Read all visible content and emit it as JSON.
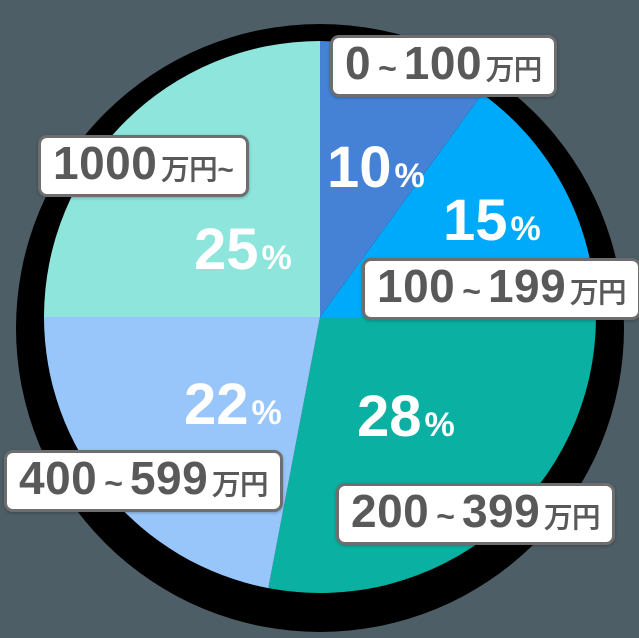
{
  "background_color": "#4E5E66",
  "chart_data": {
    "type": "pie",
    "start_angle_deg": -90,
    "direction": "clockwise",
    "legend_position": "callout-boxes",
    "percent_symbol": "%",
    "shadow_color": "#000000",
    "box_text_color": "#595959",
    "box_border_color": "#6e6e6e",
    "slices": [
      {
        "name": "0-100man-yen",
        "range_start": "0",
        "tilde": "~",
        "range_end": "100",
        "unit": "万円",
        "percent": 10,
        "color": "#4582D6"
      },
      {
        "name": "100-199man-yen",
        "range_start": "100",
        "tilde": "~",
        "range_end": "199",
        "unit": "万円",
        "percent": 15,
        "color": "#00AAFA"
      },
      {
        "name": "200-399man-yen",
        "range_start": "200",
        "tilde": "~",
        "range_end": "399",
        "unit": "万円",
        "percent": 28,
        "color": "#0AB1A2"
      },
      {
        "name": "400-599man-yen",
        "range_start": "400",
        "tilde": "~",
        "range_end": "599",
        "unit": "万円",
        "percent": 22,
        "color": "#99C6FA"
      },
      {
        "name": "1000man-yen-over",
        "range_start": "1000",
        "tilde": "",
        "range_end": "",
        "unit": "万円~",
        "percent": 25,
        "color": "#8DE5DB"
      }
    ]
  }
}
